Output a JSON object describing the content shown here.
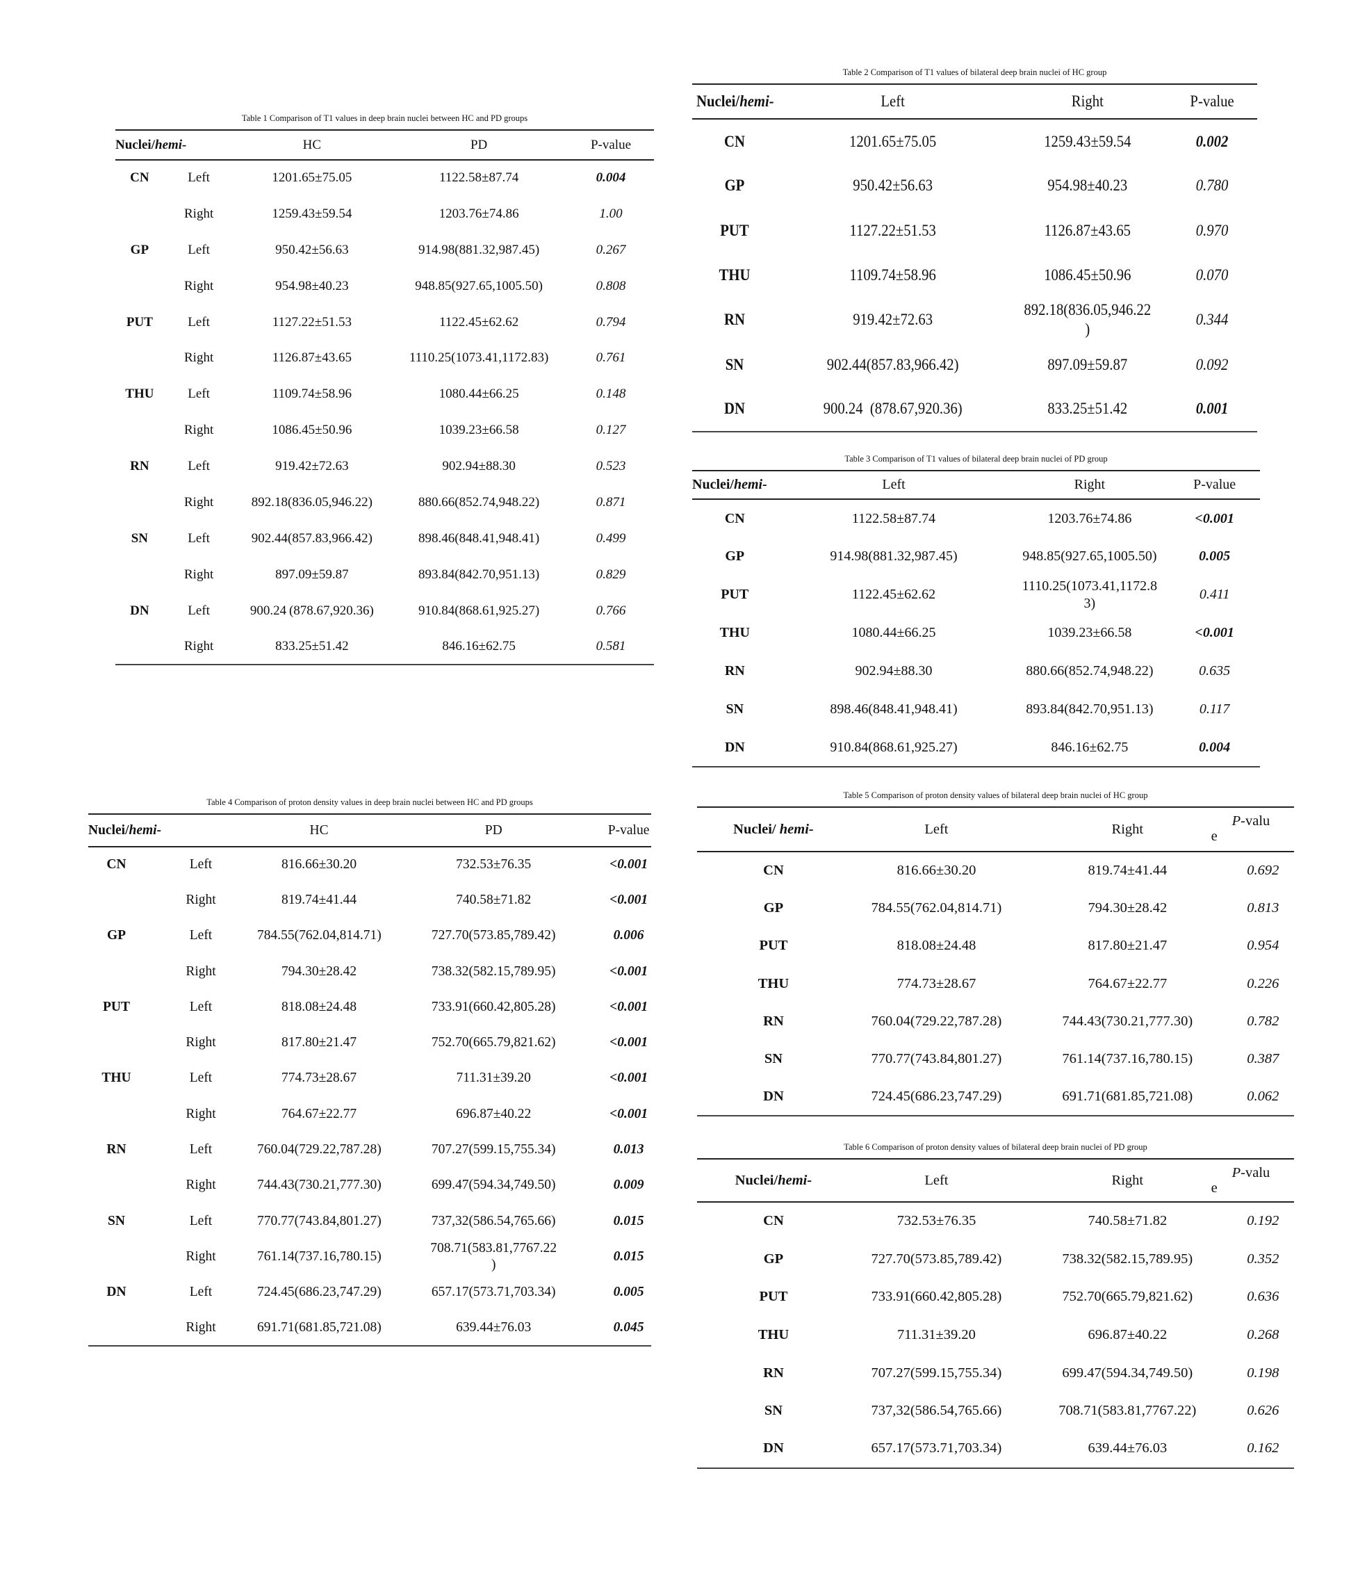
{
  "tables": [
    {
      "caption": "Table 1 Comparison of T1 values in deep brain nuclei between HC and PD groups",
      "header": {
        "nuclei": "Nuclei/",
        "hemi": "hemi-",
        "cols": [
          "HC",
          "PD"
        ],
        "p": "P-value"
      },
      "rows": [
        {
          "nucleus": "CN",
          "hemi": "Left",
          "a": "1201.65±75.05",
          "b": "1122.58±87.74",
          "p": "0.004",
          "bold": true
        },
        {
          "nucleus": "",
          "hemi": "Right",
          "a": "1259.43±59.54",
          "b": "1203.76±74.86",
          "p": "1.00",
          "bold": false
        },
        {
          "nucleus": "GP",
          "hemi": "Left",
          "a": "950.42±56.63",
          "b": "914.98(881.32,987.45)",
          "p": "0.267",
          "bold": false
        },
        {
          "nucleus": "",
          "hemi": "Right",
          "a": "954.98±40.23",
          "b": "948.85(927.65,1005.50)",
          "p": "0.808",
          "bold": false
        },
        {
          "nucleus": "PUT",
          "hemi": "Left",
          "a": "1127.22±51.53",
          "b": "1122.45±62.62",
          "p": "0.794",
          "bold": false
        },
        {
          "nucleus": "",
          "hemi": "Right",
          "a": "1126.87±43.65",
          "b": "1110.25(1073.41,1172.83)",
          "p": "0.761",
          "bold": false
        },
        {
          "nucleus": "THU",
          "hemi": "Left",
          "a": "1109.74±58.96",
          "b": "1080.44±66.25",
          "p": "0.148",
          "bold": false
        },
        {
          "nucleus": "",
          "hemi": "Right",
          "a": "1086.45±50.96",
          "b": "1039.23±66.58",
          "p": "0.127",
          "bold": false
        },
        {
          "nucleus": "RN",
          "hemi": "Left",
          "a": "919.42±72.63",
          "b": "902.94±88.30",
          "p": "0.523",
          "bold": false
        },
        {
          "nucleus": "",
          "hemi": "Right",
          "a": "892.18(836.05,946.22)",
          "b": "880.66(852.74,948.22)",
          "p": "0.871",
          "bold": false
        },
        {
          "nucleus": "SN",
          "hemi": "Left",
          "a": "902.44(857.83,966.42)",
          "b": "898.46(848.41,948.41)",
          "p": "0.499",
          "bold": false
        },
        {
          "nucleus": "",
          "hemi": "Right",
          "a": "897.09±59.87",
          "b": "893.84(842.70,951.13)",
          "p": "0.829",
          "bold": false
        },
        {
          "nucleus": "DN",
          "hemi": "Left",
          "a": "900.24 (878.67,920.36)",
          "b": "910.84(868.61,925.27)",
          "p": "0.766",
          "bold": false
        },
        {
          "nucleus": "",
          "hemi": "Right",
          "a": "833.25±51.42",
          "b": "846.16±62.75",
          "p": "0.581",
          "bold": false
        }
      ]
    },
    {
      "caption": "Table 2 Comparison of T1 values of bilateral deep brain nuclei of HC group",
      "header": {
        "nuclei": "Nuclei/",
        "hemi": "hemi-",
        "cols": [
          "Left",
          "Right"
        ],
        "p": "P-value"
      },
      "rows": [
        {
          "nucleus": "CN",
          "a": "1201.65±75.05",
          "b": "1259.43±59.54",
          "p": "0.002",
          "bold": true
        },
        {
          "nucleus": "GP",
          "a": "950.42±56.63",
          "b": "954.98±40.23",
          "p": "0.780",
          "bold": false
        },
        {
          "nucleus": "PUT",
          "a": "1127.22±51.53",
          "b": "1126.87±43.65",
          "p": "0.970",
          "bold": false
        },
        {
          "nucleus": "THU",
          "a": "1109.74±58.96",
          "b": "1086.45±50.96",
          "p": "0.070",
          "bold": false
        },
        {
          "nucleus": "RN",
          "a": "919.42±72.63",
          "b": "892.18(836.05,946.22)",
          "p": "0.344",
          "bold": false
        },
        {
          "nucleus": "SN",
          "a": "902.44(857.83,966.42)",
          "b": "897.09±59.87",
          "p": "0.092",
          "bold": false
        },
        {
          "nucleus": "DN",
          "a": "900.24 (878.67,920.36)",
          "b": "833.25±51.42",
          "p": "0.001",
          "bold": true
        }
      ]
    },
    {
      "caption": "Table 3 Comparison of T1 values of bilateral deep brain nuclei of PD group",
      "header": {
        "nuclei": "Nuclei/",
        "hemi": "hemi-",
        "cols": [
          "Left",
          "Right"
        ],
        "p": "P-value"
      },
      "rows": [
        {
          "nucleus": "CN",
          "a": "1122.58±87.74",
          "b": "1203.76±74.86",
          "p": "<0.001",
          "bold": true
        },
        {
          "nucleus": "GP",
          "a": "914.98(881.32,987.45)",
          "b": "948.85(927.65,1005.50)",
          "p": "0.005",
          "bold": true
        },
        {
          "nucleus": "PUT",
          "a": "1122.45±62.62",
          "b": "1110.25(1073.41,1172.83)",
          "p": "0.411",
          "bold": false
        },
        {
          "nucleus": "THU",
          "a": "1080.44±66.25",
          "b": "1039.23±66.58",
          "p": "<0.001",
          "bold": true
        },
        {
          "nucleus": "RN",
          "a": "902.94±88.30",
          "b": "880.66(852.74,948.22)",
          "p": "0.635",
          "bold": false
        },
        {
          "nucleus": "SN",
          "a": "898.46(848.41,948.41)",
          "b": "893.84(842.70,951.13)",
          "p": "0.117",
          "bold": false
        },
        {
          "nucleus": "DN",
          "a": "910.84(868.61,925.27)",
          "b": "846.16±62.75",
          "p": "0.004",
          "bold": true
        }
      ]
    },
    {
      "caption": "Table 4 Comparison of proton density values in deep brain nuclei between HC and PD groups",
      "header": {
        "nuclei": "Nuclei/",
        "hemi": "hemi-",
        "cols": [
          "HC",
          "PD"
        ],
        "p": "P-value"
      },
      "rows": [
        {
          "nucleus": "CN",
          "hemi": "Left",
          "a": "816.66±30.20",
          "b": "732.53±76.35",
          "p": "<0.001",
          "bold": true
        },
        {
          "nucleus": "",
          "hemi": "Right",
          "a": "819.74±41.44",
          "b": "740.58±71.82",
          "p": "<0.001",
          "bold": true
        },
        {
          "nucleus": "GP",
          "hemi": "Left",
          "a": "784.55(762.04,814.71)",
          "b": "727.70(573.85,789.42)",
          "p": "0.006",
          "bold": true
        },
        {
          "nucleus": "",
          "hemi": "Right",
          "a": "794.30±28.42",
          "b": "738.32(582.15,789.95)",
          "p": "<0.001",
          "bold": true
        },
        {
          "nucleus": "PUT",
          "hemi": "Left",
          "a": "818.08±24.48",
          "b": "733.91(660.42,805.28)",
          "p": "<0.001",
          "bold": true
        },
        {
          "nucleus": "",
          "hemi": "Right",
          "a": "817.80±21.47",
          "b": "752.70(665.79,821.62)",
          "p": "<0.001",
          "bold": true
        },
        {
          "nucleus": "THU",
          "hemi": "Left",
          "a": "774.73±28.67",
          "b": "711.31±39.20",
          "p": "<0.001",
          "bold": true
        },
        {
          "nucleus": "",
          "hemi": "Right",
          "a": "764.67±22.77",
          "b": "696.87±40.22",
          "p": "<0.001",
          "bold": true
        },
        {
          "nucleus": "RN",
          "hemi": "Left",
          "a": "760.04(729.22,787.28)",
          "b": "707.27(599.15,755.34)",
          "p": "0.013",
          "bold": true
        },
        {
          "nucleus": "",
          "hemi": "Right",
          "a": "744.43(730.21,777.30)",
          "b": "699.47(594.34,749.50)",
          "p": "0.009",
          "bold": true
        },
        {
          "nucleus": "SN",
          "hemi": "Left",
          "a": "770.77(743.84,801.27)",
          "b": "737,32(586.54,765.66)",
          "p": "0.015",
          "bold": true
        },
        {
          "nucleus": "",
          "hemi": "Right",
          "a": "761.14(737.16,780.15)",
          "b": "708.71(583.81,7767.22)",
          "p": "0.015",
          "bold": true
        },
        {
          "nucleus": "DN",
          "hemi": "Left",
          "a": "724.45(686.23,747.29)",
          "b": "657.17(573.71,703.34)",
          "p": "0.005",
          "bold": true
        },
        {
          "nucleus": "",
          "hemi": "Right",
          "a": "691.71(681.85,721.08)",
          "b": "639.44±76.03",
          "p": "0.045",
          "bold": true
        }
      ]
    },
    {
      "caption": "Table 5 Comparison of proton density values of bilateral deep brain nuclei of HC group",
      "header": {
        "nuclei": "Nuclei/ ",
        "hemi": "hemi-",
        "cols": [
          "Left",
          "Right"
        ],
        "p_italic": "P",
        "p": "-valu",
        "p_tail": "e"
      },
      "rows": [
        {
          "nucleus": "CN",
          "a": "816.66±30.20",
          "b": "819.74±41.44",
          "p": "0.692",
          "bold": false
        },
        {
          "nucleus": "GP",
          "a": "784.55(762.04,814.71)",
          "b": "794.30±28.42",
          "p": "0.813",
          "bold": false
        },
        {
          "nucleus": "PUT",
          "a": "818.08±24.48",
          "b": "817.80±21.47",
          "p": "0.954",
          "bold": false
        },
        {
          "nucleus": "THU",
          "a": "774.73±28.67",
          "b": "764.67±22.77",
          "p": "0.226",
          "bold": false
        },
        {
          "nucleus": "RN",
          "a": "760.04(729.22,787.28)",
          "b": "744.43(730.21,777.30)",
          "p": "0.782",
          "bold": false
        },
        {
          "nucleus": "SN",
          "a": "770.77(743.84,801.27)",
          "b": "761.14(737.16,780.15)",
          "p": "0.387",
          "bold": false
        },
        {
          "nucleus": "DN",
          "a": "724.45(686.23,747.29)",
          "b": "691.71(681.85,721.08)",
          "p": "0.062",
          "bold": false
        }
      ]
    },
    {
      "caption": "Table 6 Comparison of proton density values of bilateral deep brain nuclei of PD group",
      "header": {
        "nuclei": "Nuclei/",
        "hemi": "hemi-",
        "cols": [
          "Left",
          "Right"
        ],
        "p_italic": "P",
        "p": "-valu",
        "p_tail": "e"
      },
      "rows": [
        {
          "nucleus": "CN",
          "a": "732.53±76.35",
          "b": "740.58±71.82",
          "p": "0.192",
          "bold": false
        },
        {
          "nucleus": "GP",
          "a": "727.70(573.85,789.42)",
          "b": "738.32(582.15,789.95)",
          "p": "0.352",
          "bold": false
        },
        {
          "nucleus": "PUT",
          "a": "733.91(660.42,805.28)",
          "b": "752.70(665.79,821.62)",
          "p": "0.636",
          "bold": false
        },
        {
          "nucleus": "THU",
          "a": "711.31±39.20",
          "b": "696.87±40.22",
          "p": "0.268",
          "bold": false
        },
        {
          "nucleus": "RN",
          "a": "707.27(599.15,755.34)",
          "b": "699.47(594.34,749.50)",
          "p": "0.198",
          "bold": false
        },
        {
          "nucleus": "SN",
          "a": "737,32(586.54,765.66)",
          "b": "708.71(583.81,7767.22)",
          "p": "0.626",
          "bold": false
        },
        {
          "nucleus": "DN",
          "a": "657.17(573.71,703.34)",
          "b": "639.44±76.03",
          "p": "0.162",
          "bold": false
        }
      ]
    }
  ]
}
